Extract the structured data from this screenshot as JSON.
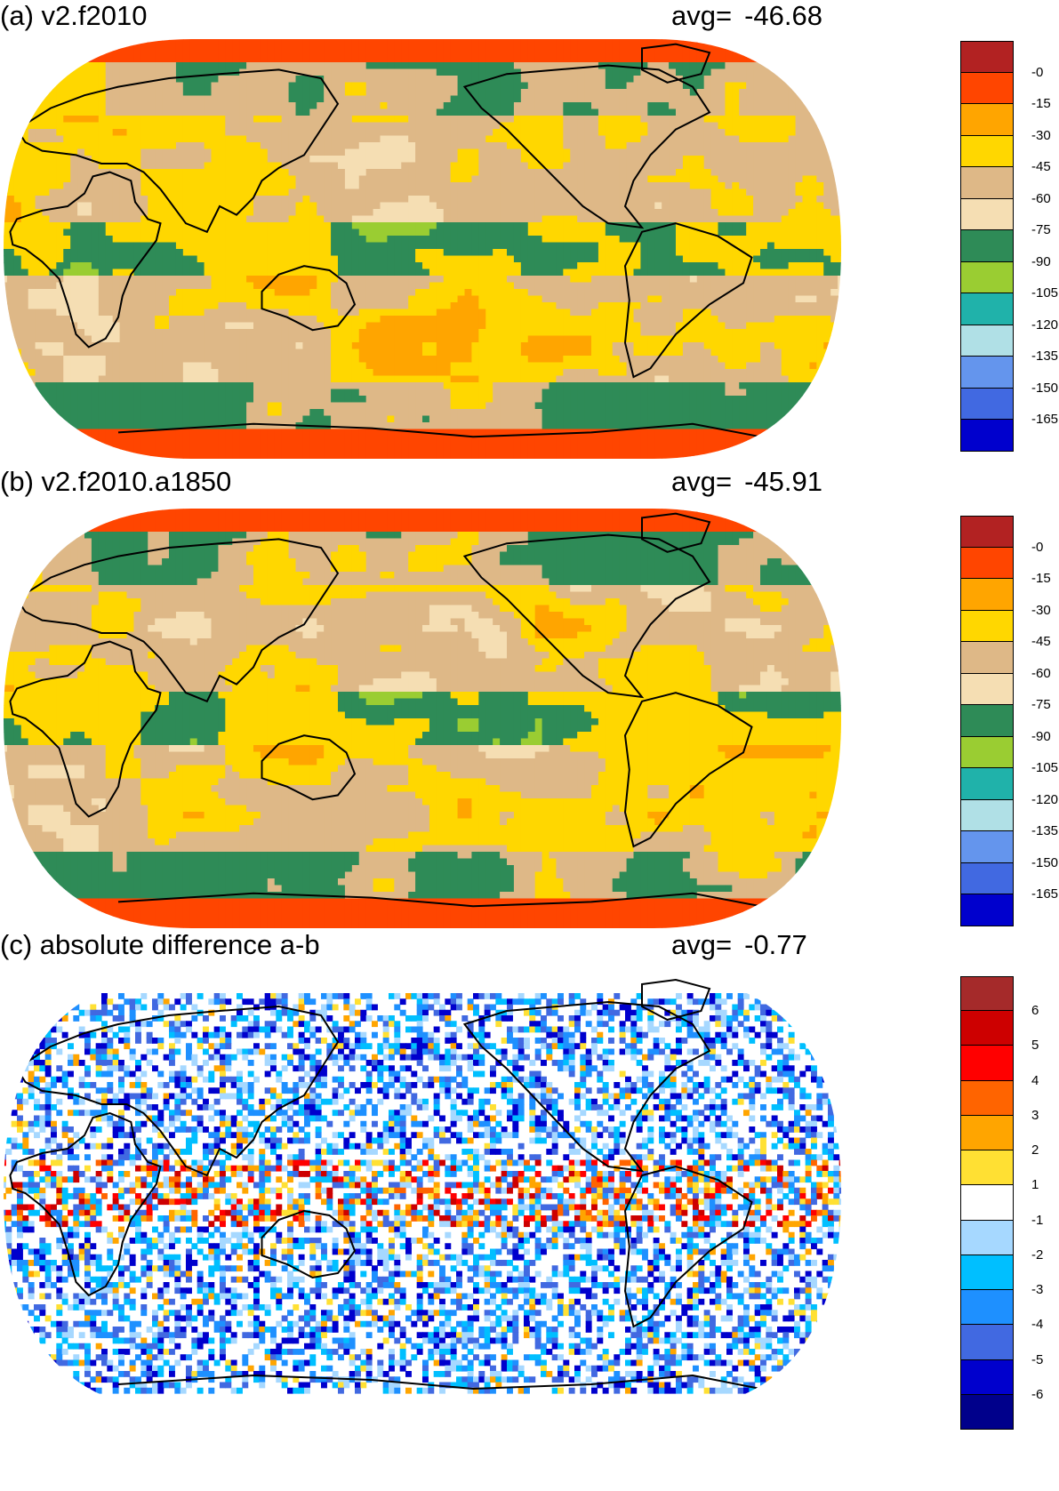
{
  "panels": [
    {
      "id": "a",
      "title": "(a) v2.f2010",
      "avg_label": "avg=",
      "avg_value": "-46.68",
      "legend": {
        "labels": [
          "-0",
          "-15",
          "-30",
          "-45",
          "-60",
          "-75",
          "-90",
          "-105",
          "-120",
          "-135",
          "-150",
          "-165"
        ],
        "colors": [
          "#b22222",
          "#ff4500",
          "#ffa500",
          "#ffd700",
          "#deb887",
          "#f5deb3",
          "#2e8b57",
          "#9acd32",
          "#20b2aa",
          "#b0e0e6",
          "#6495ed",
          "#4169e1",
          "#0000cd"
        ]
      }
    },
    {
      "id": "b",
      "title": "(b) v2.f2010.a1850",
      "avg_label": "avg=",
      "avg_value": "-45.91",
      "legend": {
        "labels": [
          "-0",
          "-15",
          "-30",
          "-45",
          "-60",
          "-75",
          "-90",
          "-105",
          "-120",
          "-135",
          "-150",
          "-165"
        ],
        "colors": [
          "#b22222",
          "#ff4500",
          "#ffa500",
          "#ffd700",
          "#deb887",
          "#f5deb3",
          "#2e8b57",
          "#9acd32",
          "#20b2aa",
          "#b0e0e6",
          "#6495ed",
          "#4169e1",
          "#0000cd"
        ]
      }
    },
    {
      "id": "c",
      "title": "(c) absolute difference a-b",
      "avg_label": "avg=",
      "avg_value": "-0.77",
      "legend": {
        "labels": [
          "6",
          "5",
          "4",
          "3",
          "2",
          "1",
          "-1",
          "-2",
          "-3",
          "-4",
          "-5",
          "-6"
        ],
        "colors": [
          "#a52a2a",
          "#cd0000",
          "#ff0000",
          "#ff6400",
          "#ffa500",
          "#ffe033",
          "#ffffff",
          "#a6d8ff",
          "#00bfff",
          "#1e90ff",
          "#4169e1",
          "#0000cd",
          "#00008b"
        ]
      }
    }
  ],
  "map": {
    "projection": "robinson",
    "central_longitude": 180
  }
}
